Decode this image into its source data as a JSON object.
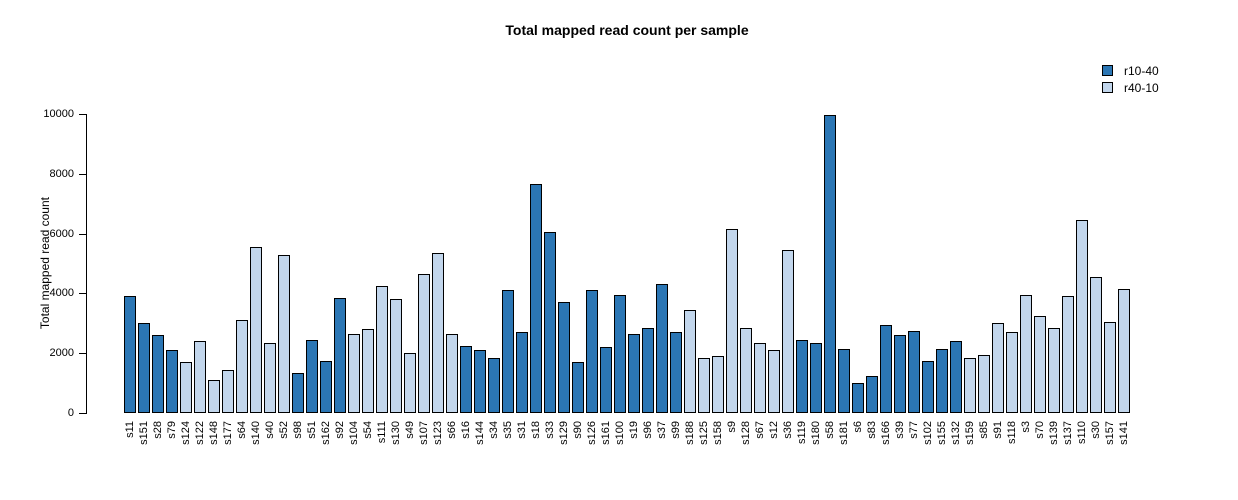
{
  "title": "Total mapped read count per sample",
  "legend": {
    "items": [
      {
        "label": "r10-40",
        "color": "#2b76b4"
      },
      {
        "label": "r40-10",
        "color": "#c2d6ec"
      }
    ]
  },
  "chart_data": {
    "type": "bar",
    "title": "Total mapped read count per sample",
    "xlabel": "",
    "ylabel": "Total mapped read count",
    "ylim": [
      0,
      10000
    ],
    "yticks": [
      0,
      2000,
      4000,
      6000,
      8000,
      10000
    ],
    "grid": false,
    "legend_position": "top-right",
    "series_colors": {
      "r10-40": "#2b76b4",
      "r40-10": "#c2d6ec"
    },
    "categories": [
      "s11",
      "s151",
      "s28",
      "s79",
      "s124",
      "s122",
      "s148",
      "s177",
      "s64",
      "s140",
      "s40",
      "s52",
      "s98",
      "s51",
      "s162",
      "s92",
      "s104",
      "s54",
      "s111",
      "s130",
      "s49",
      "s107",
      "s123",
      "s66",
      "s16",
      "s144",
      "s34",
      "s35",
      "s31",
      "s18",
      "s33",
      "s129",
      "s90",
      "s126",
      "s161",
      "s100",
      "s19",
      "s96",
      "s37",
      "s99",
      "s188",
      "s125",
      "s158",
      "s9",
      "s128",
      "s67",
      "s12",
      "s36",
      "s119",
      "s180",
      "s58",
      "s181",
      "s6",
      "s83",
      "s166",
      "s39",
      "s77",
      "s102",
      "s155",
      "s132",
      "s159",
      "s85",
      "s91",
      "s118",
      "s3",
      "s70",
      "s139",
      "s137",
      "s110",
      "s30",
      "s157",
      "s141"
    ],
    "groups": [
      "r10-40",
      "r10-40",
      "r10-40",
      "r10-40",
      "r40-10",
      "r40-10",
      "r40-10",
      "r40-10",
      "r40-10",
      "r40-10",
      "r40-10",
      "r40-10",
      "r10-40",
      "r10-40",
      "r10-40",
      "r10-40",
      "r40-10",
      "r40-10",
      "r40-10",
      "r40-10",
      "r40-10",
      "r40-10",
      "r40-10",
      "r40-10",
      "r10-40",
      "r10-40",
      "r10-40",
      "r10-40",
      "r10-40",
      "r10-40",
      "r10-40",
      "r10-40",
      "r10-40",
      "r10-40",
      "r10-40",
      "r10-40",
      "r10-40",
      "r10-40",
      "r10-40",
      "r10-40",
      "r40-10",
      "r40-10",
      "r40-10",
      "r40-10",
      "r40-10",
      "r40-10",
      "r40-10",
      "r40-10",
      "r10-40",
      "r10-40",
      "r10-40",
      "r10-40",
      "r10-40",
      "r10-40",
      "r10-40",
      "r10-40",
      "r10-40",
      "r10-40",
      "r10-40",
      "r10-40",
      "r40-10",
      "r40-10",
      "r40-10",
      "r40-10",
      "r40-10",
      "r40-10",
      "r40-10",
      "r40-10",
      "r40-10",
      "r40-10",
      "r40-10",
      "r40-10"
    ],
    "values": [
      3900,
      3000,
      2600,
      2100,
      1700,
      2400,
      1100,
      1450,
      3100,
      5550,
      2350,
      5300,
      1350,
      2450,
      1750,
      3850,
      2650,
      2800,
      4250,
      3800,
      2000,
      4650,
      5350,
      2650,
      2250,
      2100,
      1850,
      4100,
      2700,
      7650,
      6050,
      3700,
      1700,
      4100,
      2200,
      3950,
      2650,
      2850,
      4300,
      2700,
      3450,
      1850,
      1900,
      6150,
      2850,
      2350,
      2100,
      5450,
      2450,
      2350,
      9950,
      2150,
      1000,
      1250,
      2950,
      2600,
      2750,
      1750,
      2150,
      2400,
      1850,
      1950,
      3000,
      2700,
      3950,
      3250,
      2850,
      3900,
      6450,
      4550,
      3050,
      4150
    ]
  }
}
